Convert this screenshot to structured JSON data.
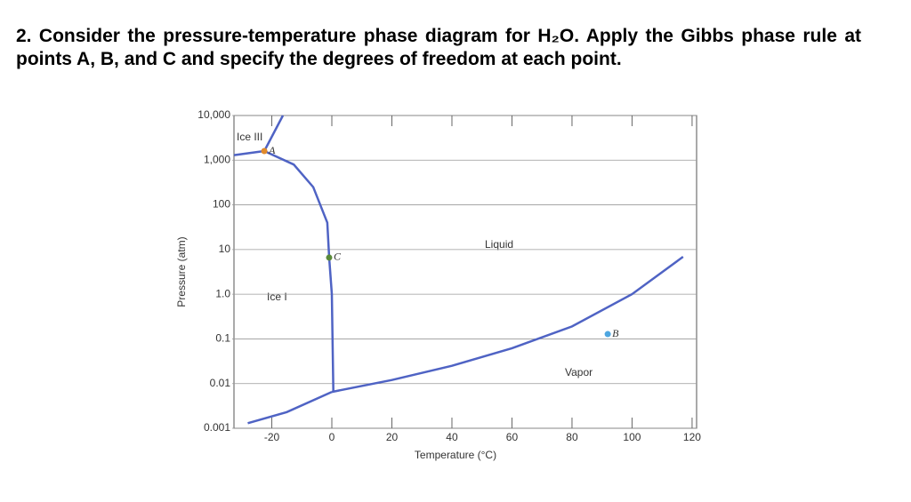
{
  "question": "2. Consider the pressure-temperature phase diagram for H₂O. Apply the Gibbs phase rule at points A, B, and C and specify the degrees of freedom at each point.",
  "chart_data": {
    "type": "line",
    "xlabel": "Temperature (°C)",
    "ylabel": "Pressure (atm)",
    "xlim": [
      -32.6,
      121.5
    ],
    "xticks": [
      -20,
      0,
      20,
      40,
      60,
      80,
      100,
      120
    ],
    "ylim": [
      0.001,
      10000
    ],
    "yscale": "log",
    "yticks": [
      {
        "value": 10000,
        "label": "10,000"
      },
      {
        "value": 1000,
        "label": "1,000"
      },
      100,
      10,
      {
        "value": 1,
        "label": "1.0"
      },
      0.1,
      0.01,
      0.001
    ],
    "grid": true,
    "annotations": [
      "Ice III",
      "Ice I",
      "Liquid",
      "Vapor"
    ],
    "series": [
      {
        "color": "#4f63c4",
        "x": [
          0,
          20,
          40,
          60,
          80,
          100,
          117
        ],
        "values": [
          0.0065,
          0.012,
          0.025,
          0.062,
          0.19,
          1.0,
          6.9
        ]
      },
      {
        "color": "#4f63c4",
        "x": [
          -28,
          -15,
          0
        ],
        "values": [
          0.0013,
          0.0023,
          0.0065
        ]
      },
      {
        "color": "#4f63c4",
        "x": [
          0.5,
          0,
          -0.9,
          -1.5,
          -6.2,
          -12.7,
          -22.5
        ],
        "values": [
          0.0065,
          1,
          6.6,
          40,
          250,
          800,
          1600
        ]
      },
      {
        "color": "#4f63c4",
        "x": [
          -32.6,
          -22.5
        ],
        "values": [
          1300,
          1600
        ]
      },
      {
        "color": "#4f63c4",
        "x": [
          -22.5,
          -16.3
        ],
        "values": [
          1600,
          10000
        ]
      }
    ],
    "points": [
      {
        "name": "A",
        "color": "#e08a2c",
        "x": -22.5,
        "value": 1600
      },
      {
        "name": "B",
        "color": "#4ea6e0",
        "x": 91.9,
        "value": 0.128
      },
      {
        "name": "C",
        "color": "#5a8a3a",
        "x": -0.9,
        "value": 6.6
      }
    ]
  }
}
